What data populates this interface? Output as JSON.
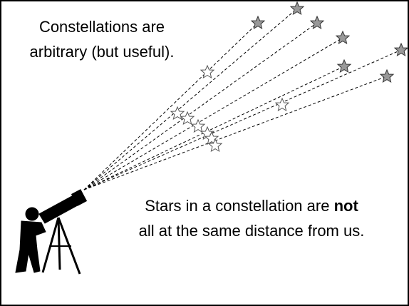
{
  "top_text": {
    "lines": [
      "Constellations are",
      "arbitrary (but useful)."
    ]
  },
  "bottom_text": {
    "line1": {
      "before": "Stars in a constellation are",
      "bold": "not"
    },
    "line2": "all at the same distance from us."
  }
}
